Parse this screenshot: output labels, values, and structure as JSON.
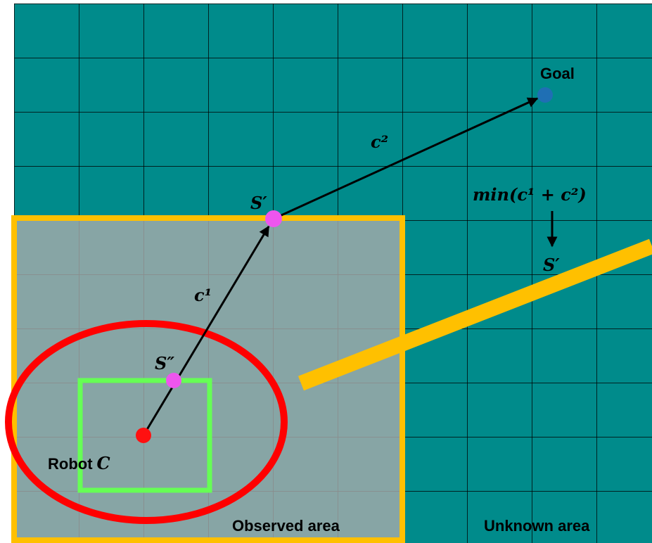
{
  "labels": {
    "goal": "Goal",
    "c2": "c²",
    "s_prime_top": "S′",
    "min_expr": "min(c¹ + c²)",
    "s_prime_right": "S′",
    "c1": "c¹",
    "s_double_prime": "S″",
    "robot": {
      "text": "Robot",
      "variable": "C"
    },
    "observed": "Observed area",
    "unknown": "Unknown area"
  }
}
